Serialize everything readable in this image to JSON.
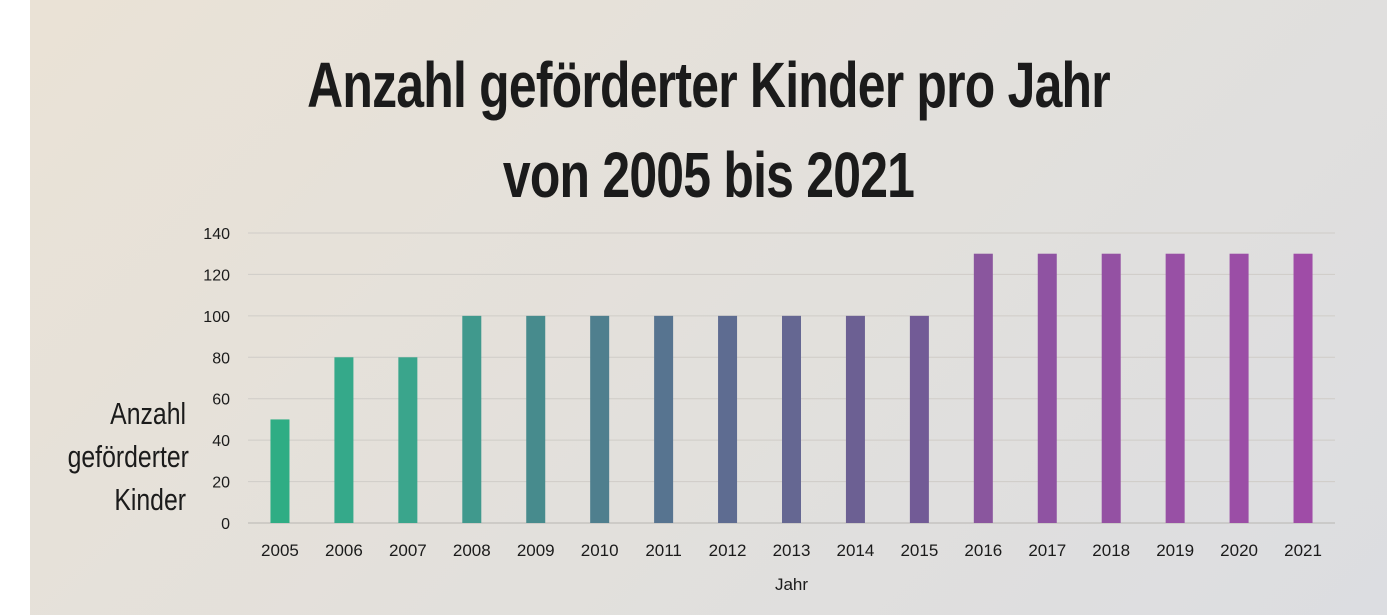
{
  "title_line1": "Anzahl geförderter Kinder pro Jahr",
  "title_line2": "von 2005 bis 2021",
  "chart_data": {
    "type": "bar",
    "title": "Anzahl geförderter Kinder pro Jahr von 2005 bis 2021",
    "xlabel": "Jahr",
    "ylabel": "Anzahl geförderter Kinder",
    "ylabel_lines": [
      "Anzahl",
      "geförderter",
      "Kinder"
    ],
    "ylim": [
      0,
      140
    ],
    "yticks": [
      0,
      20,
      40,
      60,
      80,
      100,
      120,
      140
    ],
    "grid": true,
    "legend": "none",
    "categories": [
      "2005",
      "2006",
      "2007",
      "2008",
      "2009",
      "2010",
      "2011",
      "2012",
      "2013",
      "2014",
      "2015",
      "2016",
      "2017",
      "2018",
      "2019",
      "2020",
      "2021"
    ],
    "values": [
      50,
      80,
      80,
      100,
      100,
      100,
      100,
      100,
      100,
      100,
      100,
      130,
      130,
      130,
      130,
      130,
      130
    ],
    "bar_colors": [
      "#2fad84",
      "#35a98a",
      "#3aa58c",
      "#40998d",
      "#478b8d",
      "#4f7f8e",
      "#577490",
      "#5e6c91",
      "#656792",
      "#6c6093",
      "#725b96",
      "#8a569e",
      "#8f53a2",
      "#9451a3",
      "#9850a5",
      "#9b4ea6",
      "#9f4ca7"
    ]
  }
}
